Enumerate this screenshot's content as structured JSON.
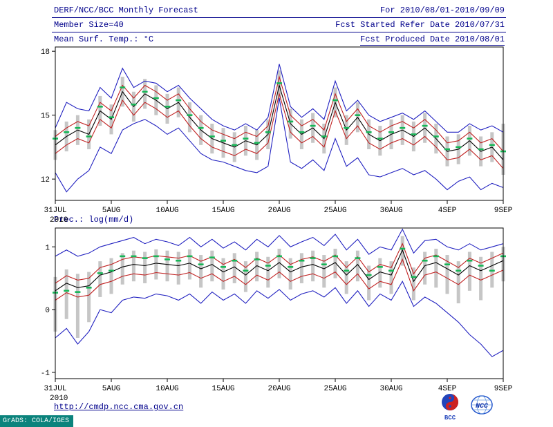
{
  "header": {
    "title": "DERF/NCC/BCC Monthly Forecast",
    "member_size": "Member Size=40",
    "for_range": "For 2010/08/01-2010/09/09",
    "refer_date": "Fcst Started Refer Date 2010/07/31",
    "produced_date": "Fcst Produced Date 2010/08/01"
  },
  "footer": {
    "url": "http://cmdp.ncc.cma.gov.cn",
    "grads_stamp": "GrADS: COLA/IGES",
    "bcc_logo_label": "BCC",
    "ncc_logo_label": "NCC"
  },
  "colors": {
    "header_text": "#00008b",
    "axis_text": "#000000",
    "grads_teal": "#0b837c",
    "ensemble_blue": "#2020c0",
    "quartile_red": "#c02020",
    "mean_black": "#000000",
    "median_green": "#17b657",
    "spread_gray": "#c6c6c6"
  },
  "chart_data": [
    {
      "id": "temp",
      "type": "line",
      "title": "Mean Surf. Temp.: °C",
      "x_year_label": "2010",
      "x_tick_labels": [
        "31JUL",
        "5AUG",
        "10AUG",
        "15AUG",
        "20AUG",
        "25AUG",
        "30AUG",
        "4SEP",
        "9SEP"
      ],
      "x_tick_days": [
        0,
        5,
        10,
        15,
        20,
        25,
        30,
        35,
        40
      ],
      "ylim": [
        11.0,
        18.2
      ],
      "yticks": [
        12,
        15,
        18
      ],
      "grid": "off",
      "legend": "off",
      "series": [
        {
          "name": "ens-max",
          "color": "#2020c0",
          "values": [
            14.4,
            15.6,
            15.3,
            15.2,
            16.3,
            15.8,
            17.2,
            16.3,
            16.6,
            16.5,
            16.1,
            16.4,
            15.8,
            15.3,
            14.8,
            14.5,
            14.3,
            14.6,
            14.3,
            14.9,
            17.4,
            15.4,
            14.9,
            15.3,
            14.8,
            16.6,
            15.2,
            15.7,
            15.0,
            14.7,
            14.9,
            15.1,
            14.8,
            15.2,
            14.7,
            14.2,
            14.2,
            14.6,
            14.3,
            14.5,
            14.2
          ]
        },
        {
          "name": "ens-min",
          "color": "#2020c0",
          "values": [
            12.3,
            11.4,
            12.0,
            12.4,
            13.5,
            13.2,
            14.3,
            14.6,
            14.8,
            14.5,
            14.1,
            14.4,
            13.8,
            13.2,
            12.9,
            12.8,
            12.6,
            12.4,
            12.3,
            12.6,
            15.8,
            12.8,
            12.5,
            12.9,
            12.4,
            13.9,
            12.6,
            13.0,
            12.2,
            12.1,
            12.3,
            12.5,
            12.2,
            12.4,
            12.0,
            11.5,
            11.9,
            12.1,
            11.5,
            11.8,
            11.6
          ]
        },
        {
          "name": "upper-quartile",
          "color": "#c02020",
          "values": [
            14.0,
            14.4,
            14.7,
            14.5,
            15.6,
            15.2,
            16.4,
            15.8,
            16.4,
            16.1,
            15.7,
            16.0,
            15.3,
            14.7,
            14.3,
            14.1,
            13.9,
            14.2,
            14.0,
            14.5,
            16.8,
            15.0,
            14.5,
            14.8,
            14.3,
            16.0,
            14.7,
            15.3,
            14.5,
            14.2,
            14.5,
            14.7,
            14.4,
            14.8,
            14.3,
            13.7,
            13.8,
            14.2,
            13.7,
            13.9,
            13.3
          ]
        },
        {
          "name": "lower-quartile",
          "color": "#c02020",
          "values": [
            13.2,
            13.6,
            13.9,
            13.7,
            14.8,
            14.4,
            15.7,
            15.0,
            15.6,
            15.3,
            14.9,
            15.2,
            14.5,
            13.9,
            13.5,
            13.3,
            13.1,
            13.4,
            13.2,
            13.7,
            16.0,
            14.2,
            13.7,
            14.0,
            13.5,
            15.2,
            13.9,
            14.5,
            13.7,
            13.4,
            13.7,
            13.9,
            13.6,
            14.0,
            13.5,
            12.9,
            13.0,
            13.4,
            12.9,
            13.1,
            12.5
          ]
        },
        {
          "name": "ens-mean",
          "color": "#000000",
          "values": [
            13.6,
            14.0,
            14.3,
            14.1,
            15.2,
            14.8,
            16.1,
            15.4,
            16.0,
            15.7,
            15.3,
            15.6,
            14.9,
            14.3,
            13.9,
            13.7,
            13.5,
            13.8,
            13.6,
            14.1,
            16.4,
            14.6,
            14.1,
            14.4,
            13.9,
            15.6,
            14.3,
            14.9,
            14.1,
            13.8,
            14.1,
            14.3,
            14.0,
            14.4,
            13.9,
            13.3,
            13.4,
            13.8,
            13.3,
            13.5,
            12.9
          ]
        }
      ],
      "median_marks": {
        "color": "#17b657",
        "values": [
          13.9,
          14.2,
          14.4,
          14.0,
          15.4,
          14.9,
          16.3,
          15.5,
          16.1,
          15.8,
          15.4,
          15.7,
          15.0,
          14.4,
          14.0,
          13.8,
          13.6,
          13.9,
          13.7,
          14.2,
          16.5,
          14.7,
          14.2,
          14.5,
          14.0,
          15.7,
          14.4,
          15.0,
          14.2,
          13.9,
          14.2,
          14.4,
          14.1,
          14.5,
          14.0,
          13.4,
          13.5,
          13.9,
          13.4,
          13.6,
          13.3
        ]
      },
      "spread_bars": {
        "color": "#c6c6c6",
        "top": [
          14.3,
          14.7,
          15.0,
          14.8,
          15.9,
          15.5,
          16.8,
          16.1,
          16.7,
          16.4,
          16.0,
          16.3,
          15.6,
          15.0,
          14.6,
          14.4,
          14.2,
          14.5,
          14.3,
          14.8,
          17.1,
          15.3,
          14.8,
          15.1,
          14.6,
          16.3,
          15.0,
          15.6,
          14.8,
          14.5,
          14.8,
          15.0,
          14.7,
          15.1,
          14.6,
          14.0,
          14.1,
          14.5,
          14.0,
          14.2,
          14.6
        ],
        "bottom": [
          12.9,
          13.3,
          13.6,
          13.4,
          14.5,
          14.1,
          15.4,
          14.7,
          15.3,
          15.0,
          14.6,
          14.9,
          14.2,
          13.6,
          13.2,
          13.0,
          12.8,
          13.1,
          12.9,
          13.4,
          15.7,
          13.9,
          13.4,
          13.7,
          13.2,
          14.9,
          13.6,
          14.2,
          13.4,
          13.1,
          13.4,
          13.6,
          13.3,
          13.7,
          13.2,
          12.6,
          12.7,
          13.1,
          12.6,
          12.8,
          12.2
        ]
      }
    },
    {
      "id": "precip",
      "type": "line",
      "title": "Prec.: log(mm/d)",
      "x_year_label": "2010",
      "x_tick_labels": [
        "31JUL",
        "5AUG",
        "10AUG",
        "15AUG",
        "20AUG",
        "25AUG",
        "30AUG",
        "4SEP",
        "9SEP"
      ],
      "x_tick_days": [
        0,
        5,
        10,
        15,
        20,
        25,
        30,
        35,
        40
      ],
      "ylim": [
        -1.1,
        1.3
      ],
      "yticks": [
        -1,
        0,
        1
      ],
      "grid": "off",
      "legend": "off",
      "series": [
        {
          "name": "ens-max",
          "color": "#2020c0",
          "values": [
            0.85,
            0.95,
            0.85,
            0.9,
            1.0,
            1.05,
            1.1,
            1.15,
            1.05,
            1.12,
            1.08,
            1.02,
            1.15,
            1.0,
            1.12,
            0.98,
            1.08,
            0.95,
            1.12,
            1.0,
            1.18,
            1.0,
            1.08,
            1.15,
            1.02,
            1.2,
            0.95,
            1.12,
            0.88,
            1.0,
            0.95,
            1.28,
            0.9,
            1.1,
            1.12,
            1.0,
            0.95,
            1.05,
            0.95,
            1.0,
            1.05
          ]
        },
        {
          "name": "ens-min",
          "color": "#2020c0",
          "values": [
            -0.45,
            -0.3,
            -0.55,
            -0.35,
            0.0,
            -0.05,
            0.15,
            0.2,
            0.18,
            0.25,
            0.22,
            0.15,
            0.25,
            0.1,
            0.28,
            0.15,
            0.25,
            0.1,
            0.3,
            0.18,
            0.32,
            0.15,
            0.25,
            0.3,
            0.2,
            0.35,
            0.1,
            0.3,
            0.05,
            0.25,
            0.15,
            0.45,
            0.05,
            0.2,
            0.1,
            -0.05,
            -0.2,
            -0.4,
            -0.55,
            -0.75,
            -0.65
          ]
        },
        {
          "name": "upper-quartile",
          "color": "#c02020",
          "values": [
            0.42,
            0.54,
            0.47,
            0.5,
            0.67,
            0.72,
            0.8,
            0.84,
            0.82,
            0.86,
            0.84,
            0.82,
            0.86,
            0.77,
            0.84,
            0.72,
            0.8,
            0.67,
            0.82,
            0.74,
            0.87,
            0.72,
            0.8,
            0.84,
            0.77,
            0.87,
            0.67,
            0.84,
            0.6,
            0.72,
            0.67,
            1.05,
            0.57,
            0.82,
            0.87,
            0.77,
            0.67,
            0.82,
            0.74,
            0.82,
            0.9
          ]
        },
        {
          "name": "lower-quartile",
          "color": "#c02020",
          "values": [
            0.15,
            0.27,
            0.2,
            0.23,
            0.4,
            0.45,
            0.53,
            0.57,
            0.55,
            0.59,
            0.57,
            0.55,
            0.59,
            0.5,
            0.57,
            0.45,
            0.53,
            0.4,
            0.55,
            0.47,
            0.6,
            0.45,
            0.53,
            0.57,
            0.5,
            0.6,
            0.4,
            0.57,
            0.33,
            0.45,
            0.4,
            0.8,
            0.3,
            0.55,
            0.6,
            0.5,
            0.4,
            0.55,
            0.47,
            0.55,
            0.63
          ]
        },
        {
          "name": "ens-mean",
          "color": "#000000",
          "values": [
            0.3,
            0.42,
            0.35,
            0.38,
            0.55,
            0.6,
            0.68,
            0.72,
            0.7,
            0.74,
            0.72,
            0.7,
            0.74,
            0.65,
            0.72,
            0.6,
            0.68,
            0.55,
            0.7,
            0.62,
            0.75,
            0.6,
            0.68,
            0.72,
            0.65,
            0.75,
            0.55,
            0.72,
            0.48,
            0.6,
            0.55,
            0.95,
            0.45,
            0.7,
            0.75,
            0.65,
            0.55,
            0.7,
            0.62,
            0.7,
            0.78
          ]
        }
      ],
      "median_marks": {
        "color": "#17b657",
        "values": [
          0.27,
          0.3,
          0.28,
          0.35,
          0.58,
          0.62,
          0.85,
          0.85,
          0.82,
          0.85,
          0.8,
          0.78,
          0.85,
          0.72,
          0.83,
          0.68,
          0.78,
          0.62,
          0.8,
          0.7,
          0.85,
          0.68,
          0.78,
          0.82,
          0.72,
          0.85,
          0.62,
          0.82,
          0.55,
          0.68,
          0.62,
          0.97,
          0.52,
          0.78,
          0.85,
          0.72,
          0.62,
          0.78,
          0.7,
          0.62,
          0.85
        ]
      },
      "spread_bars": {
        "color": "#c6c6c6",
        "top": [
          0.52,
          0.64,
          0.57,
          0.6,
          0.77,
          0.82,
          0.9,
          0.94,
          0.92,
          0.96,
          0.94,
          0.92,
          0.96,
          0.87,
          0.94,
          0.82,
          0.9,
          0.77,
          0.92,
          0.84,
          0.97,
          0.82,
          0.9,
          0.94,
          0.87,
          0.97,
          0.77,
          0.94,
          0.7,
          0.82,
          0.77,
          1.17,
          0.67,
          0.92,
          0.97,
          0.87,
          0.77,
          0.92,
          0.84,
          0.92,
          1.0
        ],
        "bottom": [
          -0.35,
          -0.15,
          -0.45,
          -0.2,
          0.2,
          0.25,
          0.4,
          0.45,
          0.42,
          0.48,
          0.45,
          0.4,
          0.48,
          0.35,
          0.45,
          0.32,
          0.42,
          0.28,
          0.45,
          0.35,
          0.5,
          0.32,
          0.42,
          0.45,
          0.35,
          0.5,
          0.25,
          0.45,
          0.15,
          0.35,
          0.25,
          0.7,
          0.15,
          0.4,
          0.35,
          0.25,
          0.1,
          0.3,
          0.15,
          0.35,
          0.45
        ]
      }
    }
  ]
}
